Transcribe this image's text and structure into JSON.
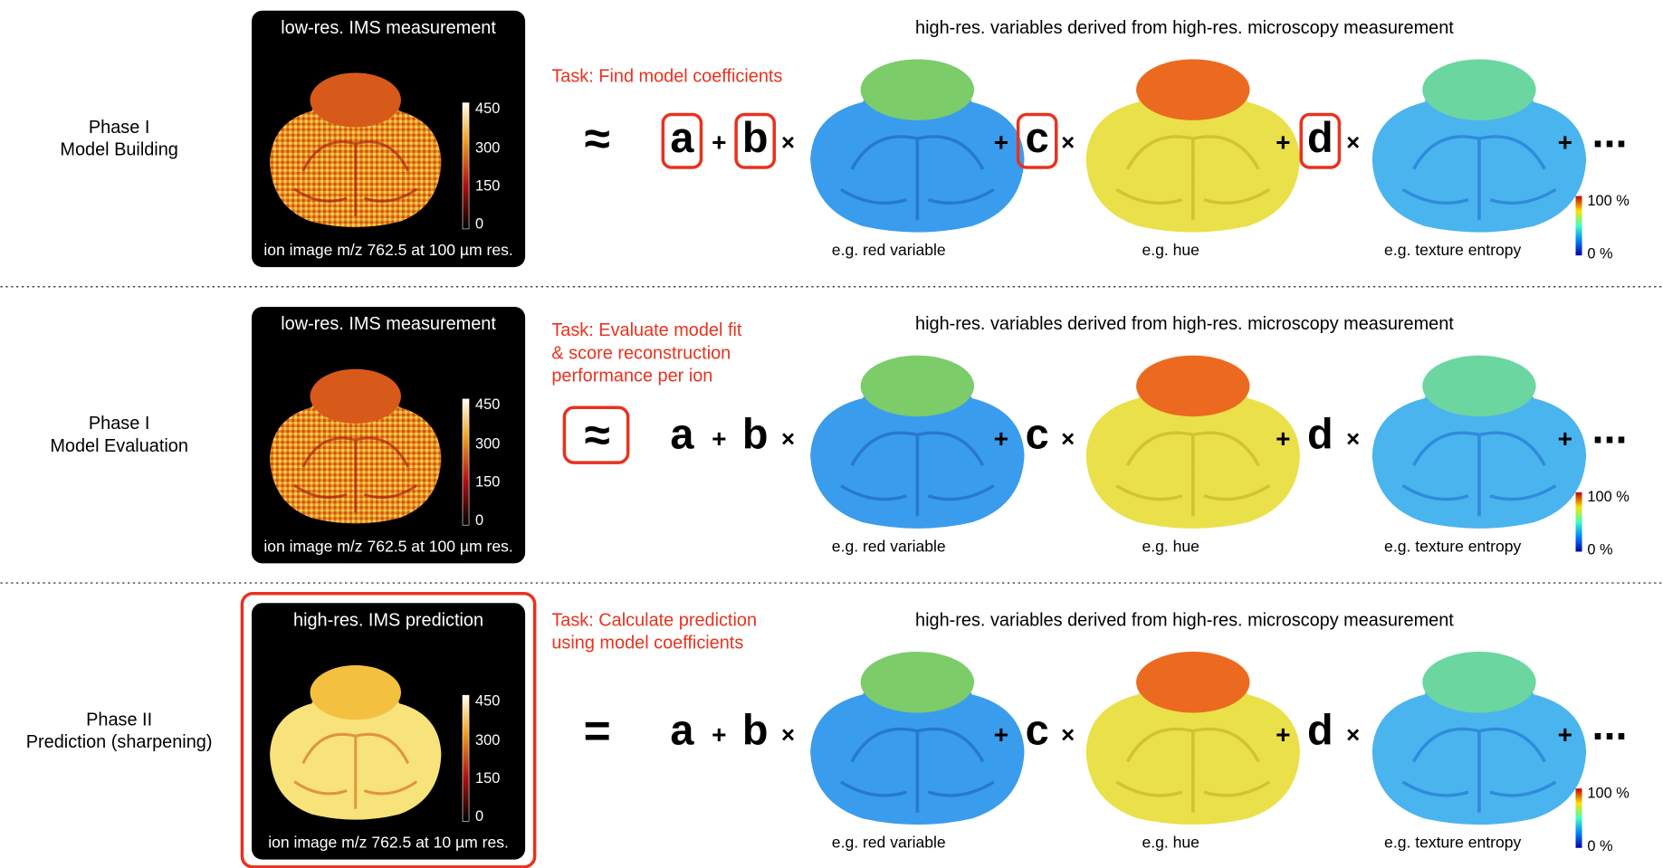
{
  "rows": [
    {
      "phase": [
        "Phase I",
        "Model Building"
      ],
      "ims": {
        "title": "low-res. IMS measurement",
        "colorbar_ticks": [
          "450",
          "300",
          "150",
          "0"
        ],
        "caption": "ion image m/z 762.5 at 100 µm res."
      },
      "task": [
        "Task: Find model coefficients"
      ],
      "header": "high-res. variables derived from high-res. microscopy measurement",
      "relation": "≈",
      "intercept": "a",
      "terms": [
        {
          "op": "+",
          "coef": "b",
          "times": "×",
          "caption": "e.g. red variable"
        },
        {
          "op": "+",
          "coef": "c",
          "times": "×",
          "caption": "e.g. hue"
        },
        {
          "op": "+",
          "coef": "d",
          "times": "×",
          "caption": "e.g. texture entropy"
        }
      ],
      "tail_op": "+",
      "ellipsis": "...",
      "colorbar": [
        "100 %",
        "0 %"
      ]
    },
    {
      "phase": [
        "Phase I",
        "Model Evaluation"
      ],
      "ims": {
        "title": "low-res. IMS measurement",
        "colorbar_ticks": [
          "450",
          "300",
          "150",
          "0"
        ],
        "caption": "ion image m/z 762.5 at 100 µm res."
      },
      "task": [
        "Task: Evaluate model fit",
        "& score reconstruction",
        "performance per ion"
      ],
      "header": "high-res. variables derived from high-res. microscopy measurement",
      "relation": "≈",
      "intercept": "a",
      "terms": [
        {
          "op": "+",
          "coef": "b",
          "times": "×",
          "caption": "e.g. red variable"
        },
        {
          "op": "+",
          "coef": "c",
          "times": "×",
          "caption": "e.g. hue"
        },
        {
          "op": "+",
          "coef": "d",
          "times": "×",
          "caption": "e.g. texture entropy"
        }
      ],
      "tail_op": "+",
      "ellipsis": "...",
      "colorbar": [
        "100 %",
        "0 %"
      ]
    },
    {
      "phase": [
        "Phase II",
        "Prediction (sharpening)"
      ],
      "ims": {
        "title": "high-res. IMS prediction",
        "colorbar_ticks": [
          "450",
          "300",
          "150",
          "0"
        ],
        "caption": "ion image m/z 762.5 at 10 µm res."
      },
      "task": [
        "Task: Calculate prediction",
        "using model coefficients"
      ],
      "header": "high-res. variables derived from high-res. microscopy measurement",
      "relation": "=",
      "intercept": "a",
      "terms": [
        {
          "op": "+",
          "coef": "b",
          "times": "×",
          "caption": "e.g. red variable"
        },
        {
          "op": "+",
          "coef": "c",
          "times": "×",
          "caption": "e.g. hue"
        },
        {
          "op": "+",
          "coef": "d",
          "times": "×",
          "caption": "e.g. texture entropy"
        }
      ],
      "tail_op": "+",
      "ellipsis": "...",
      "colorbar": [
        "100 %",
        "0 %"
      ]
    }
  ]
}
